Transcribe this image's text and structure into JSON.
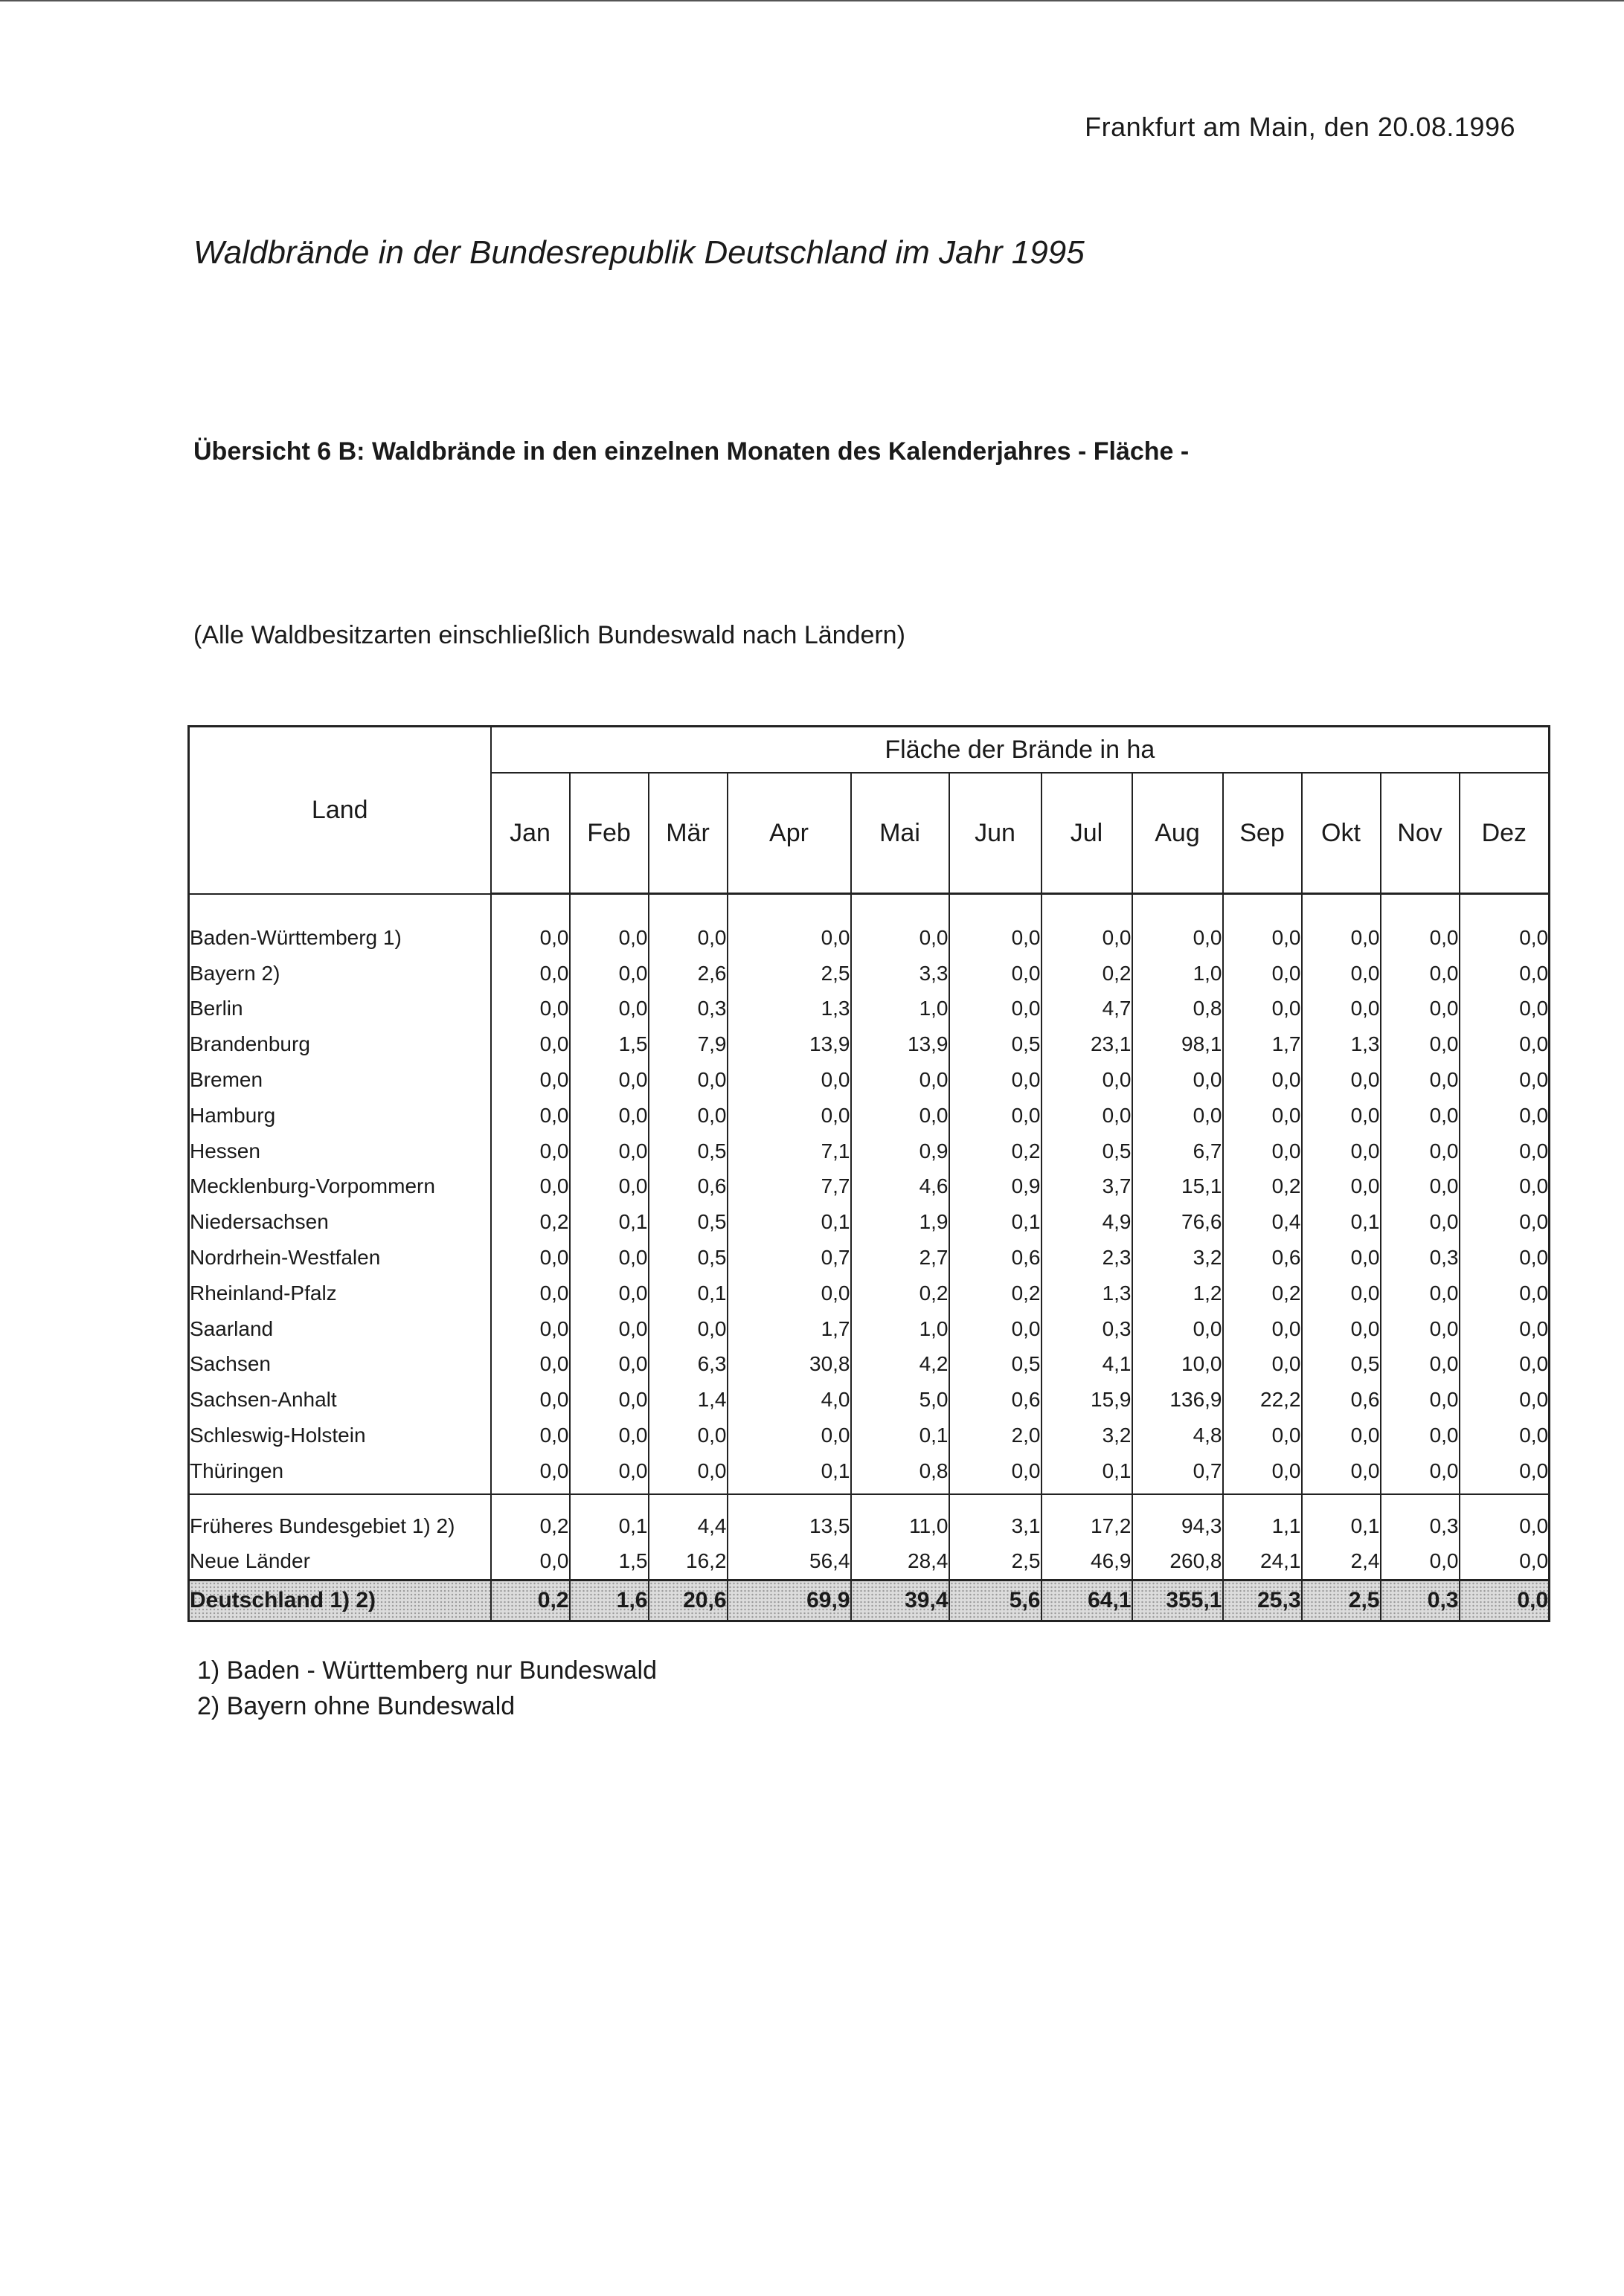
{
  "header": {
    "date_line": "Frankfurt am Main, den 20.08.1996",
    "title": "Waldbrände in der Bundesrepublik Deutschland im Jahr 1995",
    "subtitle": "Übersicht 6 B: Waldbrände in den einzelnen Monaten des Kalenderjahres - Fläche -",
    "scope": "(Alle Waldbesitzarten einschließlich Bundeswald nach Ländern)"
  },
  "table": {
    "land_header": "Land",
    "group_header": "Fläche der Brände in ha",
    "months": [
      "Jan",
      "Feb",
      "Mär",
      "Apr",
      "Mai",
      "Jun",
      "Jul",
      "Aug",
      "Sep",
      "Okt",
      "Nov",
      "Dez"
    ],
    "regions": [
      {
        "name": "Baden-Württemberg 1)",
        "values": [
          "0,0",
          "0,0",
          "0,0",
          "0,0",
          "0,0",
          "0,0",
          "0,0",
          "0,0",
          "0,0",
          "0,0",
          "0,0",
          "0,0"
        ]
      },
      {
        "name": "Bayern 2)",
        "values": [
          "0,0",
          "0,0",
          "2,6",
          "2,5",
          "3,3",
          "0,0",
          "0,2",
          "1,0",
          "0,0",
          "0,0",
          "0,0",
          "0,0"
        ]
      },
      {
        "name": "Berlin",
        "values": [
          "0,0",
          "0,0",
          "0,3",
          "1,3",
          "1,0",
          "0,0",
          "4,7",
          "0,8",
          "0,0",
          "0,0",
          "0,0",
          "0,0"
        ]
      },
      {
        "name": "Brandenburg",
        "values": [
          "0,0",
          "1,5",
          "7,9",
          "13,9",
          "13,9",
          "0,5",
          "23,1",
          "98,1",
          "1,7",
          "1,3",
          "0,0",
          "0,0"
        ]
      },
      {
        "name": "Bremen",
        "values": [
          "0,0",
          "0,0",
          "0,0",
          "0,0",
          "0,0",
          "0,0",
          "0,0",
          "0,0",
          "0,0",
          "0,0",
          "0,0",
          "0,0"
        ]
      },
      {
        "name": "Hamburg",
        "values": [
          "0,0",
          "0,0",
          "0,0",
          "0,0",
          "0,0",
          "0,0",
          "0,0",
          "0,0",
          "0,0",
          "0,0",
          "0,0",
          "0,0"
        ]
      },
      {
        "name": "Hessen",
        "values": [
          "0,0",
          "0,0",
          "0,5",
          "7,1",
          "0,9",
          "0,2",
          "0,5",
          "6,7",
          "0,0",
          "0,0",
          "0,0",
          "0,0"
        ]
      },
      {
        "name": "Mecklenburg-Vorpommern",
        "values": [
          "0,0",
          "0,0",
          "0,6",
          "7,7",
          "4,6",
          "0,9",
          "3,7",
          "15,1",
          "0,2",
          "0,0",
          "0,0",
          "0,0"
        ]
      },
      {
        "name": "Niedersachsen",
        "values": [
          "0,2",
          "0,1",
          "0,5",
          "0,1",
          "1,9",
          "0,1",
          "4,9",
          "76,6",
          "0,4",
          "0,1",
          "0,0",
          "0,0"
        ]
      },
      {
        "name": "Nordrhein-Westfalen",
        "values": [
          "0,0",
          "0,0",
          "0,5",
          "0,7",
          "2,7",
          "0,6",
          "2,3",
          "3,2",
          "0,6",
          "0,0",
          "0,3",
          "0,0"
        ]
      },
      {
        "name": "Rheinland-Pfalz",
        "values": [
          "0,0",
          "0,0",
          "0,1",
          "0,0",
          "0,2",
          "0,2",
          "1,3",
          "1,2",
          "0,2",
          "0,0",
          "0,0",
          "0,0"
        ]
      },
      {
        "name": "Saarland",
        "values": [
          "0,0",
          "0,0",
          "0,0",
          "1,7",
          "1,0",
          "0,0",
          "0,3",
          "0,0",
          "0,0",
          "0,0",
          "0,0",
          "0,0"
        ]
      },
      {
        "name": "Sachsen",
        "values": [
          "0,0",
          "0,0",
          "6,3",
          "30,8",
          "4,2",
          "0,5",
          "4,1",
          "10,0",
          "0,0",
          "0,5",
          "0,0",
          "0,0"
        ]
      },
      {
        "name": "Sachsen-Anhalt",
        "values": [
          "0,0",
          "0,0",
          "1,4",
          "4,0",
          "5,0",
          "0,6",
          "15,9",
          "136,9",
          "22,2",
          "0,6",
          "0,0",
          "0,0"
        ]
      },
      {
        "name": "Schleswig-Holstein",
        "values": [
          "0,0",
          "0,0",
          "0,0",
          "0,0",
          "0,1",
          "2,0",
          "3,2",
          "4,8",
          "0,0",
          "0,0",
          "0,0",
          "0,0"
        ]
      },
      {
        "name": "Thüringen",
        "values": [
          "0,0",
          "0,0",
          "0,0",
          "0,1",
          "0,8",
          "0,0",
          "0,1",
          "0,7",
          "0,0",
          "0,0",
          "0,0",
          "0,0"
        ]
      }
    ],
    "subtotals": [
      {
        "name": "Früheres Bundesgebiet 1) 2)",
        "values": [
          "0,2",
          "0,1",
          "4,4",
          "13,5",
          "11,0",
          "3,1",
          "17,2",
          "94,3",
          "1,1",
          "0,1",
          "0,3",
          "0,0"
        ]
      },
      {
        "name": "Neue Länder",
        "values": [
          "0,0",
          "1,5",
          "16,2",
          "56,4",
          "28,4",
          "2,5",
          "46,9",
          "260,8",
          "24,1",
          "2,4",
          "0,0",
          "0,0"
        ]
      }
    ],
    "total": {
      "name": "Deutschland 1) 2)",
      "values": [
        "0,2",
        "1,6",
        "20,6",
        "69,9",
        "39,4",
        "5,6",
        "64,1",
        "355,1",
        "25,3",
        "2,5",
        "0,3",
        "0,0"
      ]
    }
  },
  "footnotes": [
    "1) Baden - Württemberg nur Bundeswald",
    "2) Bayern ohne Bundeswald"
  ]
}
